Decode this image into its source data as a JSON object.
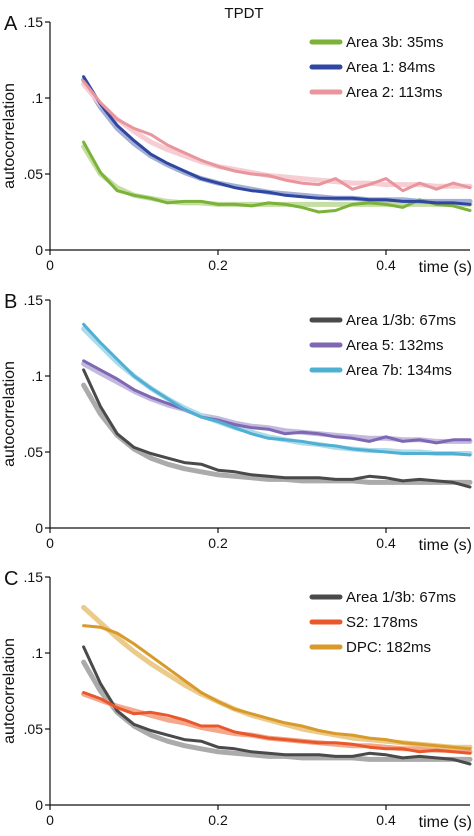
{
  "figure_title": "TPDT",
  "chart_data": [
    {
      "type": "line",
      "panel": "A",
      "xlabel": "time (s)",
      "ylabel": "autocorrelation",
      "xlim": [
        0,
        0.5
      ],
      "ylim": [
        0,
        0.15
      ],
      "xticks": [
        0,
        0.2,
        0.4
      ],
      "xtick_labels": [
        "0",
        "0.2",
        "0.4"
      ],
      "yticks": [
        0,
        0.05,
        0.1,
        0.15
      ],
      "ytick_labels": [
        "0",
        ".05",
        ".1",
        ".15"
      ],
      "legend_position": "top-right",
      "series": [
        {
          "name": "Area 3b: 35ms",
          "color": "#7db23a",
          "fit_color": "#c4dea3",
          "x": [
            0.04,
            0.06,
            0.08,
            0.1,
            0.12,
            0.14,
            0.16,
            0.18,
            0.2,
            0.22,
            0.24,
            0.26,
            0.28,
            0.3,
            0.32,
            0.34,
            0.36,
            0.38,
            0.4,
            0.42,
            0.44,
            0.46,
            0.48,
            0.5
          ],
          "y": [
            0.071,
            0.051,
            0.039,
            0.036,
            0.034,
            0.031,
            0.032,
            0.032,
            0.03,
            0.03,
            0.029,
            0.031,
            0.03,
            0.028,
            0.025,
            0.026,
            0.03,
            0.031,
            0.03,
            0.028,
            0.033,
            0.03,
            0.029,
            0.026
          ],
          "fit": [
            0.068,
            0.05,
            0.041,
            0.036,
            0.034,
            0.032,
            0.031,
            0.031,
            0.03,
            0.03,
            0.03,
            0.03,
            0.03,
            0.03,
            0.03,
            0.03,
            0.03,
            0.03,
            0.03,
            0.03,
            0.03,
            0.03,
            0.03,
            0.03
          ]
        },
        {
          "name": "Area 1: 84ms",
          "color": "#2f47a0",
          "fit_color": "#a4afd6",
          "x": [
            0.04,
            0.06,
            0.08,
            0.1,
            0.12,
            0.14,
            0.16,
            0.18,
            0.2,
            0.22,
            0.24,
            0.26,
            0.28,
            0.3,
            0.32,
            0.34,
            0.36,
            0.38,
            0.4,
            0.42,
            0.44,
            0.46,
            0.48,
            0.5
          ],
          "y": [
            0.114,
            0.096,
            0.082,
            0.072,
            0.063,
            0.057,
            0.052,
            0.047,
            0.044,
            0.041,
            0.039,
            0.038,
            0.036,
            0.035,
            0.034,
            0.034,
            0.034,
            0.033,
            0.033,
            0.032,
            0.032,
            0.031,
            0.031,
            0.03
          ],
          "fit": [
            0.112,
            0.094,
            0.08,
            0.07,
            0.062,
            0.056,
            0.051,
            0.047,
            0.044,
            0.042,
            0.04,
            0.038,
            0.037,
            0.036,
            0.035,
            0.034,
            0.034,
            0.033,
            0.033,
            0.033,
            0.032,
            0.032,
            0.032,
            0.032
          ]
        },
        {
          "name": "Area 2: 113ms",
          "color": "#e8959d",
          "fit_color": "#f6cdd2",
          "x": [
            0.04,
            0.06,
            0.08,
            0.1,
            0.12,
            0.14,
            0.16,
            0.18,
            0.2,
            0.22,
            0.24,
            0.26,
            0.28,
            0.3,
            0.32,
            0.34,
            0.36,
            0.38,
            0.4,
            0.42,
            0.44,
            0.46,
            0.48,
            0.5
          ],
          "y": [
            0.111,
            0.097,
            0.086,
            0.08,
            0.076,
            0.069,
            0.064,
            0.059,
            0.055,
            0.052,
            0.05,
            0.049,
            0.046,
            0.044,
            0.043,
            0.047,
            0.04,
            0.043,
            0.047,
            0.039,
            0.044,
            0.04,
            0.044,
            0.041
          ],
          "fit": [
            0.109,
            0.096,
            0.086,
            0.078,
            0.071,
            0.066,
            0.062,
            0.058,
            0.055,
            0.053,
            0.051,
            0.049,
            0.048,
            0.047,
            0.046,
            0.045,
            0.044,
            0.044,
            0.043,
            0.043,
            0.043,
            0.042,
            0.042,
            0.042
          ]
        }
      ]
    },
    {
      "type": "line",
      "panel": "B",
      "xlabel": "time (s)",
      "ylabel": "autocorrelation",
      "xlim": [
        0,
        0.5
      ],
      "ylim": [
        0,
        0.15
      ],
      "xticks": [
        0,
        0.2,
        0.4
      ],
      "xtick_labels": [
        "0",
        "0.2",
        "0.4"
      ],
      "yticks": [
        0,
        0.05,
        0.1,
        0.15
      ],
      "ytick_labels": [
        "0",
        ".05",
        ".1",
        ".15"
      ],
      "legend_position": "top-right",
      "series": [
        {
          "name": "Area 1/3b: 67ms",
          "color": "#4a4a4a",
          "fit_color": "#ababab",
          "x": [
            0.04,
            0.06,
            0.08,
            0.1,
            0.12,
            0.14,
            0.16,
            0.18,
            0.2,
            0.22,
            0.24,
            0.26,
            0.28,
            0.3,
            0.32,
            0.34,
            0.36,
            0.38,
            0.4,
            0.42,
            0.44,
            0.46,
            0.48,
            0.5
          ],
          "y": [
            0.104,
            0.08,
            0.062,
            0.053,
            0.049,
            0.046,
            0.043,
            0.042,
            0.038,
            0.037,
            0.035,
            0.034,
            0.033,
            0.033,
            0.033,
            0.032,
            0.032,
            0.034,
            0.033,
            0.031,
            0.032,
            0.031,
            0.03,
            0.027
          ],
          "fit": [
            0.094,
            0.075,
            0.061,
            0.052,
            0.046,
            0.042,
            0.039,
            0.037,
            0.035,
            0.034,
            0.033,
            0.032,
            0.032,
            0.031,
            0.031,
            0.031,
            0.031,
            0.03,
            0.03,
            0.03,
            0.03,
            0.03,
            0.03,
            0.03
          ]
        },
        {
          "name": "Area 5: 132ms",
          "color": "#7e68b3",
          "fit_color": "#c3b9de",
          "x": [
            0.04,
            0.06,
            0.08,
            0.1,
            0.12,
            0.14,
            0.16,
            0.18,
            0.2,
            0.22,
            0.24,
            0.26,
            0.28,
            0.3,
            0.32,
            0.34,
            0.36,
            0.38,
            0.4,
            0.42,
            0.44,
            0.46,
            0.48,
            0.5
          ],
          "y": [
            0.11,
            0.104,
            0.098,
            0.091,
            0.086,
            0.082,
            0.078,
            0.073,
            0.071,
            0.068,
            0.066,
            0.065,
            0.062,
            0.063,
            0.062,
            0.06,
            0.059,
            0.057,
            0.06,
            0.057,
            0.058,
            0.056,
            0.058,
            0.058
          ],
          "fit": [
            0.108,
            0.102,
            0.096,
            0.09,
            0.085,
            0.081,
            0.078,
            0.074,
            0.072,
            0.069,
            0.067,
            0.066,
            0.064,
            0.063,
            0.062,
            0.061,
            0.06,
            0.059,
            0.059,
            0.058,
            0.058,
            0.057,
            0.057,
            0.057
          ]
        },
        {
          "name": "Area 7b: 134ms",
          "color": "#4fb0d3",
          "fit_color": "#aedaea",
          "x": [
            0.04,
            0.06,
            0.08,
            0.1,
            0.12,
            0.14,
            0.16,
            0.18,
            0.2,
            0.22,
            0.24,
            0.26,
            0.28,
            0.3,
            0.32,
            0.34,
            0.36,
            0.38,
            0.4,
            0.42,
            0.44,
            0.46,
            0.48,
            0.5
          ],
          "y": [
            0.134,
            0.122,
            0.111,
            0.1,
            0.092,
            0.085,
            0.078,
            0.073,
            0.07,
            0.066,
            0.062,
            0.059,
            0.058,
            0.057,
            0.055,
            0.054,
            0.052,
            0.051,
            0.05,
            0.049,
            0.049,
            0.049,
            0.049,
            0.048
          ],
          "fit": [
            0.131,
            0.12,
            0.109,
            0.1,
            0.092,
            0.085,
            0.079,
            0.074,
            0.07,
            0.066,
            0.063,
            0.06,
            0.058,
            0.056,
            0.055,
            0.053,
            0.052,
            0.051,
            0.051,
            0.05,
            0.05,
            0.049,
            0.049,
            0.049
          ]
        }
      ]
    },
    {
      "type": "line",
      "panel": "C",
      "xlabel": "time (s)",
      "ylabel": "autocorrelation",
      "xlim": [
        0,
        0.5
      ],
      "ylim": [
        0,
        0.15
      ],
      "xticks": [
        0,
        0.2,
        0.4
      ],
      "xtick_labels": [
        "0",
        "0.2",
        "0.4"
      ],
      "yticks": [
        0,
        0.05,
        0.1,
        0.15
      ],
      "ytick_labels": [
        "0",
        ".05",
        ".1",
        ".15"
      ],
      "legend_position": "top-right",
      "series": [
        {
          "name": "Area 1/3b: 67ms",
          "color": "#4a4a4a",
          "fit_color": "#ababab",
          "x": [
            0.04,
            0.06,
            0.08,
            0.1,
            0.12,
            0.14,
            0.16,
            0.18,
            0.2,
            0.22,
            0.24,
            0.26,
            0.28,
            0.3,
            0.32,
            0.34,
            0.36,
            0.38,
            0.4,
            0.42,
            0.44,
            0.46,
            0.48,
            0.5
          ],
          "y": [
            0.104,
            0.08,
            0.062,
            0.053,
            0.049,
            0.046,
            0.043,
            0.042,
            0.038,
            0.037,
            0.035,
            0.034,
            0.033,
            0.033,
            0.033,
            0.032,
            0.032,
            0.034,
            0.033,
            0.031,
            0.032,
            0.031,
            0.03,
            0.027
          ],
          "fit": [
            0.094,
            0.075,
            0.061,
            0.052,
            0.046,
            0.042,
            0.039,
            0.037,
            0.035,
            0.034,
            0.033,
            0.032,
            0.032,
            0.031,
            0.031,
            0.031,
            0.031,
            0.03,
            0.03,
            0.03,
            0.03,
            0.03,
            0.03,
            0.03
          ]
        },
        {
          "name": "S2: 178ms",
          "color": "#e8582a",
          "fit_color": "#f3a78b",
          "x": [
            0.04,
            0.06,
            0.08,
            0.1,
            0.12,
            0.14,
            0.16,
            0.18,
            0.2,
            0.22,
            0.24,
            0.26,
            0.28,
            0.3,
            0.32,
            0.34,
            0.36,
            0.38,
            0.4,
            0.42,
            0.44,
            0.46,
            0.48,
            0.5
          ],
          "y": [
            0.074,
            0.07,
            0.064,
            0.06,
            0.061,
            0.059,
            0.056,
            0.052,
            0.052,
            0.048,
            0.046,
            0.044,
            0.043,
            0.042,
            0.041,
            0.041,
            0.04,
            0.038,
            0.037,
            0.037,
            0.035,
            0.036,
            0.035,
            0.034
          ],
          "fit": [
            0.073,
            0.069,
            0.065,
            0.062,
            0.059,
            0.056,
            0.054,
            0.051,
            0.049,
            0.047,
            0.046,
            0.044,
            0.043,
            0.042,
            0.041,
            0.04,
            0.039,
            0.039,
            0.038,
            0.037,
            0.037,
            0.036,
            0.036,
            0.035
          ]
        },
        {
          "name": "DPC: 182ms",
          "color": "#d79a2b",
          "fit_color": "#ecca8a",
          "x": [
            0.04,
            0.06,
            0.08,
            0.1,
            0.12,
            0.14,
            0.16,
            0.18,
            0.2,
            0.22,
            0.24,
            0.26,
            0.28,
            0.3,
            0.32,
            0.34,
            0.36,
            0.38,
            0.4,
            0.42,
            0.44,
            0.46,
            0.48,
            0.5
          ],
          "y": [
            0.118,
            0.117,
            0.113,
            0.106,
            0.098,
            0.09,
            0.082,
            0.074,
            0.068,
            0.063,
            0.06,
            0.057,
            0.054,
            0.052,
            0.049,
            0.047,
            0.046,
            0.044,
            0.043,
            0.041,
            0.04,
            0.039,
            0.038,
            0.037
          ],
          "fit": [
            0.13,
            0.12,
            0.11,
            0.101,
            0.093,
            0.086,
            0.079,
            0.073,
            0.068,
            0.063,
            0.059,
            0.056,
            0.053,
            0.05,
            0.048,
            0.046,
            0.044,
            0.043,
            0.042,
            0.041,
            0.04,
            0.039,
            0.038,
            0.038
          ]
        }
      ]
    }
  ]
}
